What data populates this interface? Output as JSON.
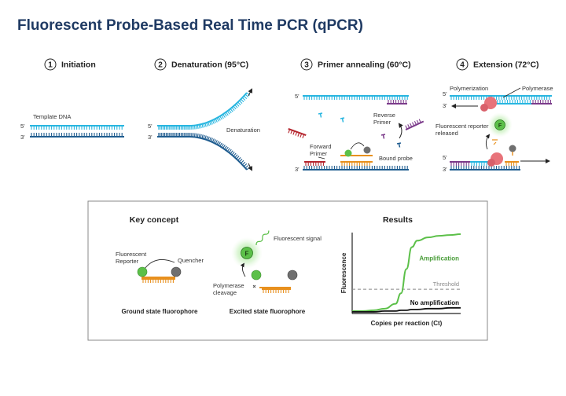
{
  "title": "Fluorescent Probe-Based Real Time PCR (qPCR)",
  "colors": {
    "top_strand": "#29b6e0",
    "bottom_strand": "#1f5c8f",
    "forward_primer": "#b5262f",
    "reverse_primer": "#7b3a8a",
    "probe": "#e8901e",
    "reporter": "#5cc049",
    "quencher": "#6f6f6f",
    "polymerase": "#e8737a",
    "amplification_curve": "#5cc049",
    "no_amp_curve": "#111111",
    "threshold": "#888888"
  },
  "steps": [
    {
      "num": "1",
      "label": "Initiation",
      "strand_labels": [
        "5'",
        "3'"
      ],
      "annotation": "Template DNA"
    },
    {
      "num": "2",
      "label": "Denaturation (95°C)",
      "strand_labels": [
        "5'",
        "3'"
      ],
      "annotation": "Denaturation"
    },
    {
      "num": "3",
      "label": "Primer annealing (60°C)",
      "strand_labels": [
        "5'",
        "3'"
      ],
      "annotations": [
        "Reverse Primer",
        "Forward Primer",
        "Bound probe"
      ]
    },
    {
      "num": "4",
      "label": "Extension (72°C)",
      "strand_labels": [
        "5'",
        "3'",
        "5'",
        "3'"
      ],
      "annotations": [
        "Polymerization",
        "Polymerase",
        "Fluorescent reporter released"
      ]
    }
  ],
  "key_concept": {
    "heading": "Key concept",
    "reporter_label": "Fluorescent Reporter",
    "quencher_label": "Quencher",
    "ground_caption": "Ground state fluorophore",
    "signal_label": "Fluorescent signal",
    "cleavage_label": "Polymerase cleavage",
    "excited_caption": "Excited state fluorophore",
    "fluor_letter": "F"
  },
  "results": {
    "heading": "Results",
    "chart_data": {
      "type": "line",
      "title": "Results",
      "xlabel": "Copies per reaction (Ct)",
      "ylabel": "Fluorescence",
      "x": [
        0,
        0.1,
        0.2,
        0.3,
        0.4,
        0.45,
        0.5,
        0.55,
        0.6,
        0.7,
        0.8,
        0.9,
        1.0
      ],
      "series": [
        {
          "name": "Amplification",
          "values": [
            0.03,
            0.03,
            0.04,
            0.06,
            0.12,
            0.25,
            0.55,
            0.82,
            0.9,
            0.94,
            0.96,
            0.97,
            0.98
          ]
        },
        {
          "name": "No amplification",
          "values": [
            0.02,
            0.02,
            0.02,
            0.03,
            0.03,
            0.04,
            0.04,
            0.05,
            0.05,
            0.06,
            0.06,
            0.07,
            0.07
          ]
        }
      ],
      "threshold": {
        "label": "Threshold",
        "value": 0.3
      },
      "grid": false
    }
  }
}
